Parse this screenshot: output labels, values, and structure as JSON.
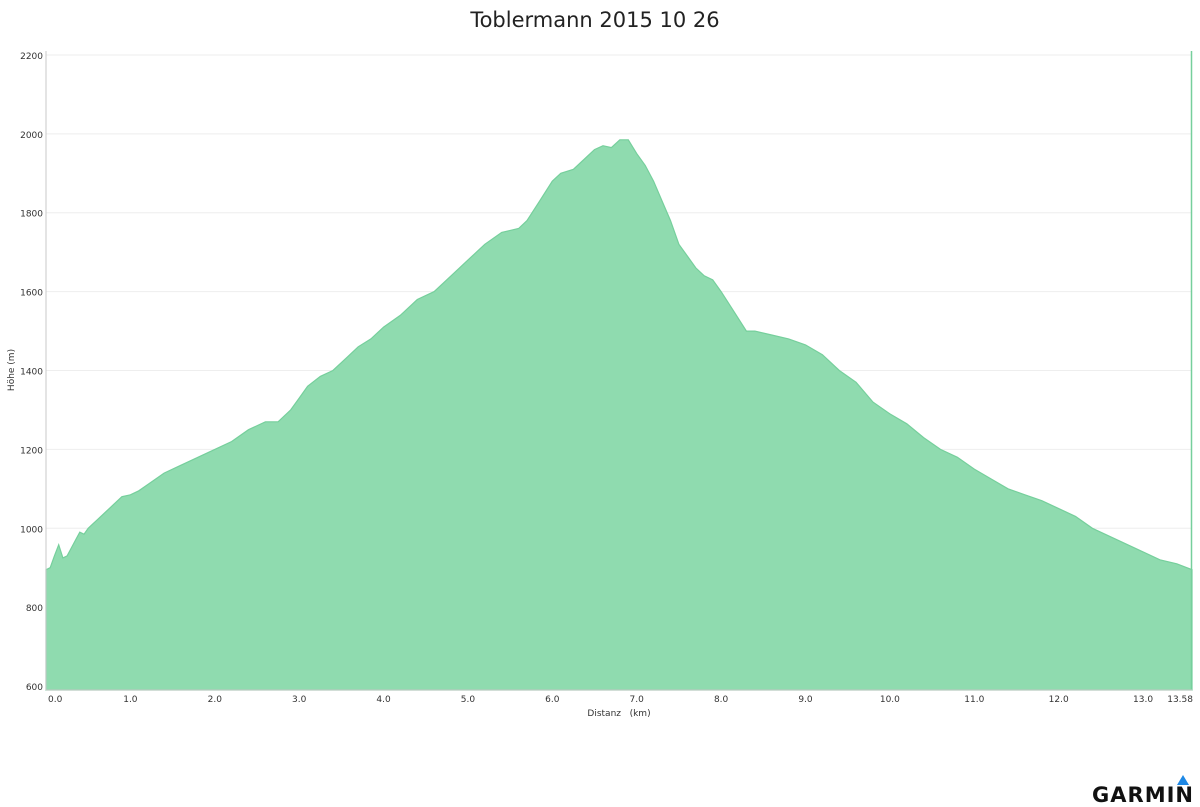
{
  "chart_data": {
    "type": "area",
    "title": "Toblermann 2015 10 26",
    "xlabel": "Distanz   (km)",
    "ylabel": "Höhe (m)",
    "xlim": [
      0,
      13.58
    ],
    "ylim": [
      590,
      2210
    ],
    "x_ticks": [
      0,
      1,
      2,
      3,
      4,
      5,
      6,
      7,
      8,
      9,
      10,
      11,
      12,
      13,
      13.58
    ],
    "x_tick_labels": [
      "0.0",
      "1.0",
      "2.0",
      "3.0",
      "4.0",
      "5.0",
      "6.0",
      "7.0",
      "8.0",
      "9.0",
      "10.0",
      "11.0",
      "12.0",
      "13.0",
      "13.58"
    ],
    "y_ticks": [
      600,
      800,
      1000,
      1200,
      1400,
      1600,
      1800,
      2000,
      2200
    ],
    "y_tick_labels": [
      "600",
      "800",
      "1000",
      "1200",
      "1400",
      "1600",
      "1800",
      "2000",
      "2200"
    ],
    "grid": true,
    "fill_color": "#8fdbaf",
    "line_color": "#76cf9c",
    "series": [
      {
        "x": [
          0,
          0.05,
          0.1,
          0.15,
          0.2,
          0.25,
          0.3,
          0.35,
          0.4,
          0.45,
          0.5,
          0.55,
          0.6,
          0.7,
          0.8,
          0.9,
          1.0,
          1.1,
          1.2,
          1.4,
          1.6,
          1.8,
          2.0,
          2.2,
          2.4,
          2.6,
          2.75,
          2.9,
          3.0,
          3.1,
          3.25,
          3.4,
          3.55,
          3.7,
          3.85,
          4.0,
          4.2,
          4.4,
          4.6,
          4.8,
          5.0,
          5.2,
          5.4,
          5.6,
          5.7,
          5.85,
          6.0,
          6.1,
          6.25,
          6.4,
          6.5,
          6.6,
          6.7,
          6.8,
          6.9,
          7.0,
          7.1,
          7.2,
          7.3,
          7.4,
          7.5,
          7.6,
          7.7,
          7.8,
          7.9,
          8.0,
          8.15,
          8.3,
          8.4,
          8.6,
          8.8,
          9.0,
          9.2,
          9.4,
          9.6,
          9.8,
          10.0,
          10.2,
          10.4,
          10.6,
          10.8,
          11.0,
          11.2,
          11.4,
          11.6,
          11.8,
          12.0,
          12.2,
          12.4,
          12.6,
          12.8,
          13.0,
          13.2,
          13.4,
          13.58
        ],
        "values": [
          895,
          900,
          930,
          958,
          925,
          930,
          950,
          970,
          990,
          985,
          1000,
          1010,
          1020,
          1040,
          1060,
          1080,
          1085,
          1095,
          1110,
          1140,
          1160,
          1180,
          1200,
          1220,
          1250,
          1270,
          1270,
          1300,
          1330,
          1360,
          1385,
          1400,
          1430,
          1460,
          1480,
          1510,
          1540,
          1580,
          1600,
          1640,
          1680,
          1720,
          1750,
          1760,
          1780,
          1830,
          1880,
          1900,
          1910,
          1940,
          1960,
          1970,
          1965,
          1985,
          1985,
          1950,
          1920,
          1880,
          1830,
          1780,
          1720,
          1690,
          1660,
          1640,
          1630,
          1600,
          1550,
          1500,
          1500,
          1490,
          1480,
          1465,
          1440,
          1400,
          1370,
          1320,
          1290,
          1265,
          1230,
          1200,
          1180,
          1150,
          1125,
          1100,
          1085,
          1070,
          1050,
          1030,
          1000,
          980,
          960,
          940,
          920,
          910,
          895
        ]
      }
    ]
  },
  "logo": {
    "text": "GARMIN",
    "accent_color": "#1e88e5"
  }
}
